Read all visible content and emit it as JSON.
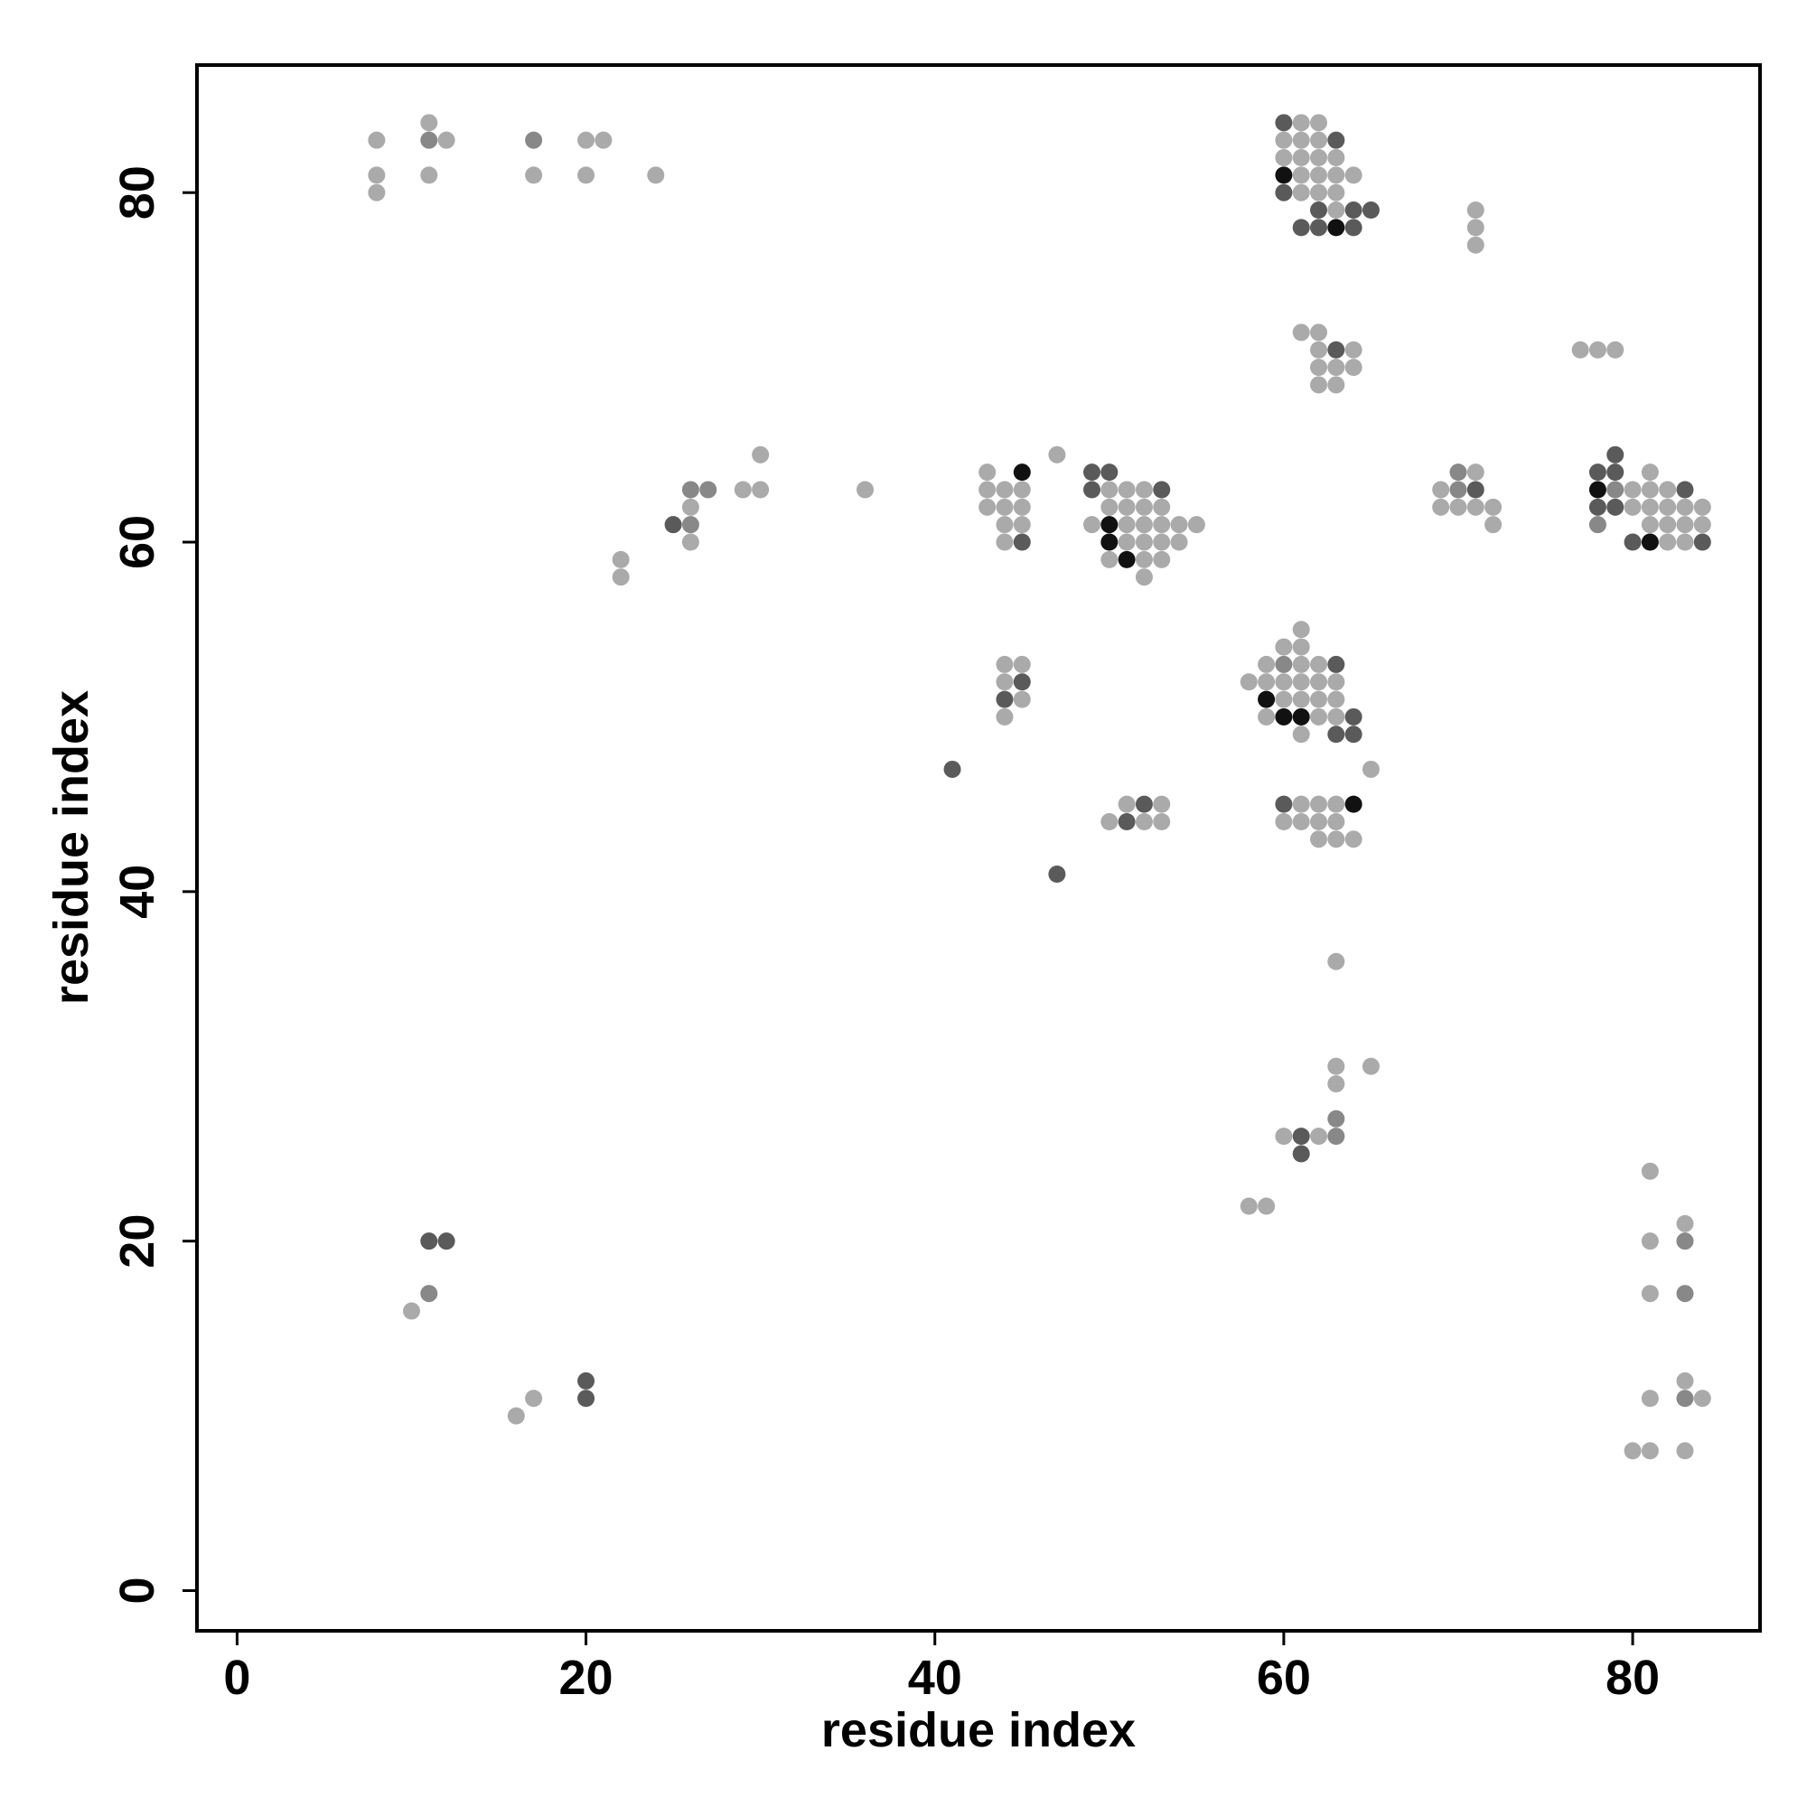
{
  "chart_data": {
    "type": "scatter",
    "title": "",
    "xlabel": "residue index",
    "ylabel": "residue index",
    "xlim": [
      -2.3,
      87.3
    ],
    "ylim": [
      -2.3,
      87.3
    ],
    "xticks": [
      0,
      20,
      40,
      60,
      80
    ],
    "yticks": [
      0,
      20,
      40,
      60,
      80
    ],
    "grid": false,
    "legend": "none",
    "colors": {
      "light": "#aaaaaa",
      "medium": "#888888",
      "dark": "#5a5a5a",
      "black": "#111111"
    },
    "points": [
      [
        8,
        83,
        "light"
      ],
      [
        8,
        81,
        "light"
      ],
      [
        8,
        80,
        "light"
      ],
      [
        11,
        84,
        "light"
      ],
      [
        11,
        83,
        "medium"
      ],
      [
        12,
        83,
        "light"
      ],
      [
        11,
        81,
        "light"
      ],
      [
        17,
        83,
        "medium"
      ],
      [
        17,
        81,
        "light"
      ],
      [
        20,
        83,
        "light"
      ],
      [
        21,
        83,
        "light"
      ],
      [
        20,
        81,
        "light"
      ],
      [
        24,
        81,
        "light"
      ],
      [
        60,
        84,
        "dark"
      ],
      [
        61,
        84,
        "light"
      ],
      [
        62,
        84,
        "light"
      ],
      [
        60,
        83,
        "light"
      ],
      [
        61,
        83,
        "light"
      ],
      [
        62,
        83,
        "light"
      ],
      [
        63,
        83,
        "dark"
      ],
      [
        60,
        82,
        "light"
      ],
      [
        61,
        82,
        "light"
      ],
      [
        62,
        82,
        "light"
      ],
      [
        63,
        82,
        "light"
      ],
      [
        60,
        81,
        "black"
      ],
      [
        61,
        81,
        "light"
      ],
      [
        62,
        81,
        "light"
      ],
      [
        63,
        81,
        "light"
      ],
      [
        64,
        81,
        "light"
      ],
      [
        60,
        80,
        "dark"
      ],
      [
        61,
        80,
        "light"
      ],
      [
        62,
        80,
        "light"
      ],
      [
        63,
        80,
        "light"
      ],
      [
        62,
        79,
        "dark"
      ],
      [
        63,
        79,
        "light"
      ],
      [
        64,
        79,
        "dark"
      ],
      [
        65,
        79,
        "dark"
      ],
      [
        61,
        78,
        "dark"
      ],
      [
        62,
        78,
        "dark"
      ],
      [
        63,
        78,
        "black"
      ],
      [
        64,
        78,
        "dark"
      ],
      [
        71,
        79,
        "light"
      ],
      [
        71,
        78,
        "light"
      ],
      [
        71,
        77,
        "light"
      ],
      [
        61,
        72,
        "light"
      ],
      [
        62,
        72,
        "light"
      ],
      [
        62,
        71,
        "light"
      ],
      [
        63,
        71,
        "dark"
      ],
      [
        64,
        71,
        "light"
      ],
      [
        62,
        70,
        "light"
      ],
      [
        63,
        70,
        "light"
      ],
      [
        64,
        70,
        "light"
      ],
      [
        62,
        69,
        "light"
      ],
      [
        63,
        69,
        "light"
      ],
      [
        77,
        71,
        "light"
      ],
      [
        78,
        71,
        "light"
      ],
      [
        79,
        71,
        "light"
      ],
      [
        30,
        65,
        "light"
      ],
      [
        29,
        63,
        "light"
      ],
      [
        30,
        63,
        "light"
      ],
      [
        36,
        63,
        "light"
      ],
      [
        26,
        63,
        "medium"
      ],
      [
        27,
        63,
        "medium"
      ],
      [
        26,
        62,
        "light"
      ],
      [
        25,
        61,
        "dark"
      ],
      [
        26,
        61,
        "medium"
      ],
      [
        26,
        60,
        "light"
      ],
      [
        22,
        59,
        "light"
      ],
      [
        22,
        58,
        "light"
      ],
      [
        43,
        64,
        "light"
      ],
      [
        45,
        64,
        "black"
      ],
      [
        43,
        63,
        "light"
      ],
      [
        44,
        63,
        "light"
      ],
      [
        45,
        63,
        "light"
      ],
      [
        43,
        62,
        "light"
      ],
      [
        44,
        62,
        "light"
      ],
      [
        45,
        62,
        "light"
      ],
      [
        44,
        61,
        "light"
      ],
      [
        45,
        61,
        "light"
      ],
      [
        44,
        60,
        "light"
      ],
      [
        45,
        60,
        "dark"
      ],
      [
        47,
        65,
        "light"
      ],
      [
        49,
        64,
        "dark"
      ],
      [
        50,
        64,
        "dark"
      ],
      [
        49,
        63,
        "dark"
      ],
      [
        50,
        63,
        "light"
      ],
      [
        51,
        63,
        "light"
      ],
      [
        52,
        63,
        "light"
      ],
      [
        53,
        63,
        "dark"
      ],
      [
        50,
        62,
        "light"
      ],
      [
        51,
        62,
        "light"
      ],
      [
        52,
        62,
        "light"
      ],
      [
        53,
        62,
        "light"
      ],
      [
        49,
        61,
        "light"
      ],
      [
        50,
        61,
        "black"
      ],
      [
        51,
        61,
        "light"
      ],
      [
        52,
        61,
        "light"
      ],
      [
        53,
        61,
        "light"
      ],
      [
        54,
        61,
        "light"
      ],
      [
        55,
        61,
        "light"
      ],
      [
        50,
        60,
        "black"
      ],
      [
        51,
        60,
        "light"
      ],
      [
        52,
        60,
        "light"
      ],
      [
        53,
        60,
        "light"
      ],
      [
        54,
        60,
        "light"
      ],
      [
        50,
        59,
        "light"
      ],
      [
        51,
        59,
        "black"
      ],
      [
        52,
        59,
        "light"
      ],
      [
        53,
        59,
        "light"
      ],
      [
        52,
        58,
        "light"
      ],
      [
        69,
        63,
        "light"
      ],
      [
        70,
        64,
        "medium"
      ],
      [
        71,
        64,
        "light"
      ],
      [
        70,
        63,
        "medium"
      ],
      [
        71,
        63,
        "dark"
      ],
      [
        69,
        62,
        "light"
      ],
      [
        70,
        62,
        "light"
      ],
      [
        71,
        62,
        "light"
      ],
      [
        72,
        62,
        "light"
      ],
      [
        72,
        61,
        "light"
      ],
      [
        78,
        64,
        "dark"
      ],
      [
        79,
        64,
        "dark"
      ],
      [
        79,
        65,
        "dark"
      ],
      [
        78,
        63,
        "black"
      ],
      [
        79,
        63,
        "medium"
      ],
      [
        80,
        63,
        "light"
      ],
      [
        81,
        63,
        "light"
      ],
      [
        82,
        63,
        "light"
      ],
      [
        83,
        63,
        "dark"
      ],
      [
        78,
        62,
        "dark"
      ],
      [
        79,
        62,
        "dark"
      ],
      [
        80,
        62,
        "light"
      ],
      [
        81,
        62,
        "light"
      ],
      [
        82,
        62,
        "light"
      ],
      [
        83,
        62,
        "light"
      ],
      [
        84,
        62,
        "light"
      ],
      [
        78,
        61,
        "medium"
      ],
      [
        81,
        61,
        "light"
      ],
      [
        82,
        61,
        "light"
      ],
      [
        83,
        61,
        "light"
      ],
      [
        84,
        61,
        "light"
      ],
      [
        80,
        60,
        "dark"
      ],
      [
        81,
        60,
        "black"
      ],
      [
        82,
        60,
        "light"
      ],
      [
        83,
        60,
        "light"
      ],
      [
        84,
        60,
        "dark"
      ],
      [
        81,
        64,
        "light"
      ],
      [
        44,
        53,
        "light"
      ],
      [
        45,
        53,
        "light"
      ],
      [
        44,
        52,
        "light"
      ],
      [
        45,
        52,
        "dark"
      ],
      [
        44,
        51,
        "dark"
      ],
      [
        45,
        51,
        "light"
      ],
      [
        44,
        50,
        "light"
      ],
      [
        61,
        55,
        "light"
      ],
      [
        60,
        54,
        "light"
      ],
      [
        61,
        54,
        "light"
      ],
      [
        59,
        53,
        "light"
      ],
      [
        60,
        53,
        "medium"
      ],
      [
        61,
        53,
        "light"
      ],
      [
        62,
        53,
        "light"
      ],
      [
        63,
        53,
        "dark"
      ],
      [
        58,
        52,
        "light"
      ],
      [
        59,
        52,
        "light"
      ],
      [
        60,
        52,
        "light"
      ],
      [
        61,
        52,
        "light"
      ],
      [
        62,
        52,
        "light"
      ],
      [
        63,
        52,
        "light"
      ],
      [
        59,
        51,
        "black"
      ],
      [
        60,
        51,
        "light"
      ],
      [
        61,
        51,
        "light"
      ],
      [
        62,
        51,
        "light"
      ],
      [
        63,
        51,
        "light"
      ],
      [
        59,
        50,
        "light"
      ],
      [
        60,
        50,
        "black"
      ],
      [
        61,
        50,
        "black"
      ],
      [
        62,
        50,
        "light"
      ],
      [
        63,
        50,
        "light"
      ],
      [
        64,
        50,
        "dark"
      ],
      [
        61,
        49,
        "light"
      ],
      [
        63,
        49,
        "dark"
      ],
      [
        64,
        49,
        "dark"
      ],
      [
        65,
        47,
        "light"
      ],
      [
        41,
        47,
        "dark"
      ],
      [
        51,
        45,
        "light"
      ],
      [
        52,
        45,
        "dark"
      ],
      [
        53,
        45,
        "light"
      ],
      [
        50,
        44,
        "light"
      ],
      [
        51,
        44,
        "dark"
      ],
      [
        52,
        44,
        "light"
      ],
      [
        53,
        44,
        "light"
      ],
      [
        60,
        45,
        "dark"
      ],
      [
        61,
        45,
        "light"
      ],
      [
        62,
        45,
        "light"
      ],
      [
        63,
        45,
        "light"
      ],
      [
        64,
        45,
        "black"
      ],
      [
        60,
        44,
        "light"
      ],
      [
        61,
        44,
        "light"
      ],
      [
        62,
        44,
        "light"
      ],
      [
        63,
        44,
        "light"
      ],
      [
        62,
        43,
        "light"
      ],
      [
        63,
        43,
        "light"
      ],
      [
        64,
        43,
        "light"
      ],
      [
        47,
        41,
        "dark"
      ],
      [
        63,
        36,
        "light"
      ],
      [
        63,
        30,
        "light"
      ],
      [
        65,
        30,
        "light"
      ],
      [
        63,
        29,
        "light"
      ],
      [
        63,
        27,
        "medium"
      ],
      [
        60,
        26,
        "light"
      ],
      [
        61,
        26,
        "dark"
      ],
      [
        62,
        26,
        "light"
      ],
      [
        63,
        26,
        "medium"
      ],
      [
        61,
        25,
        "dark"
      ],
      [
        58,
        22,
        "light"
      ],
      [
        59,
        22,
        "light"
      ],
      [
        81,
        24,
        "light"
      ],
      [
        83,
        21,
        "light"
      ],
      [
        81,
        20,
        "light"
      ],
      [
        83,
        20,
        "medium"
      ],
      [
        81,
        17,
        "light"
      ],
      [
        83,
        17,
        "medium"
      ],
      [
        83,
        12,
        "light"
      ],
      [
        81,
        11,
        "light"
      ],
      [
        83,
        11,
        "medium"
      ],
      [
        84,
        11,
        "light"
      ],
      [
        80,
        8,
        "light"
      ],
      [
        81,
        8,
        "light"
      ],
      [
        83,
        8,
        "light"
      ],
      [
        11,
        20,
        "dark"
      ],
      [
        12,
        20,
        "dark"
      ],
      [
        11,
        17,
        "medium"
      ],
      [
        10,
        16,
        "light"
      ],
      [
        20,
        12,
        "dark"
      ],
      [
        20,
        11,
        "dark"
      ],
      [
        17,
        11,
        "light"
      ],
      [
        16,
        10,
        "light"
      ]
    ]
  }
}
